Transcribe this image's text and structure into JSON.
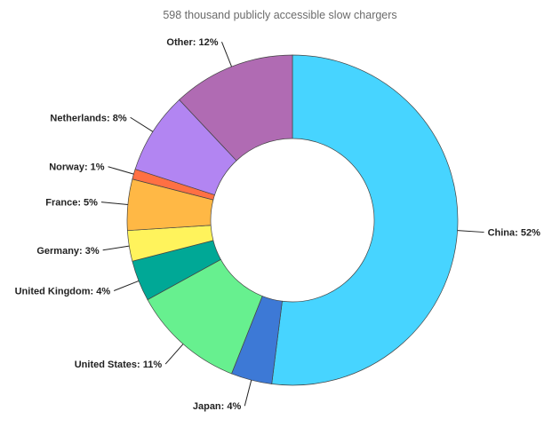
{
  "chart_data": {
    "type": "pie",
    "donut": true,
    "title": "598 thousand publicly accessible slow chargers",
    "slices": [
      {
        "label": "China",
        "value": 52,
        "text": "China: 52%",
        "color": "#47d4ff"
      },
      {
        "label": "Japan",
        "value": 4,
        "text": "Japan: 4%",
        "color": "#3d79d6"
      },
      {
        "label": "United States",
        "value": 11,
        "text": "United States: 11%",
        "color": "#67f08f"
      },
      {
        "label": "United Kingdom",
        "value": 4,
        "text": "United Kingdom: 4%",
        "color": "#00a896"
      },
      {
        "label": "Germany",
        "value": 3,
        "text": "Germany: 3%",
        "color": "#fff35c"
      },
      {
        "label": "France",
        "value": 5,
        "text": "France: 5%",
        "color": "#ffb845"
      },
      {
        "label": "Norway",
        "value": 1,
        "text": "Norway: 1%",
        "color": "#ff7043"
      },
      {
        "label": "Netherlands",
        "value": 8,
        "text": "Netherlands: 8%",
        "color": "#b285f2"
      },
      {
        "label": "Other",
        "value": 12,
        "text": "Other: 12%",
        "color": "#b06bb3"
      }
    ]
  }
}
